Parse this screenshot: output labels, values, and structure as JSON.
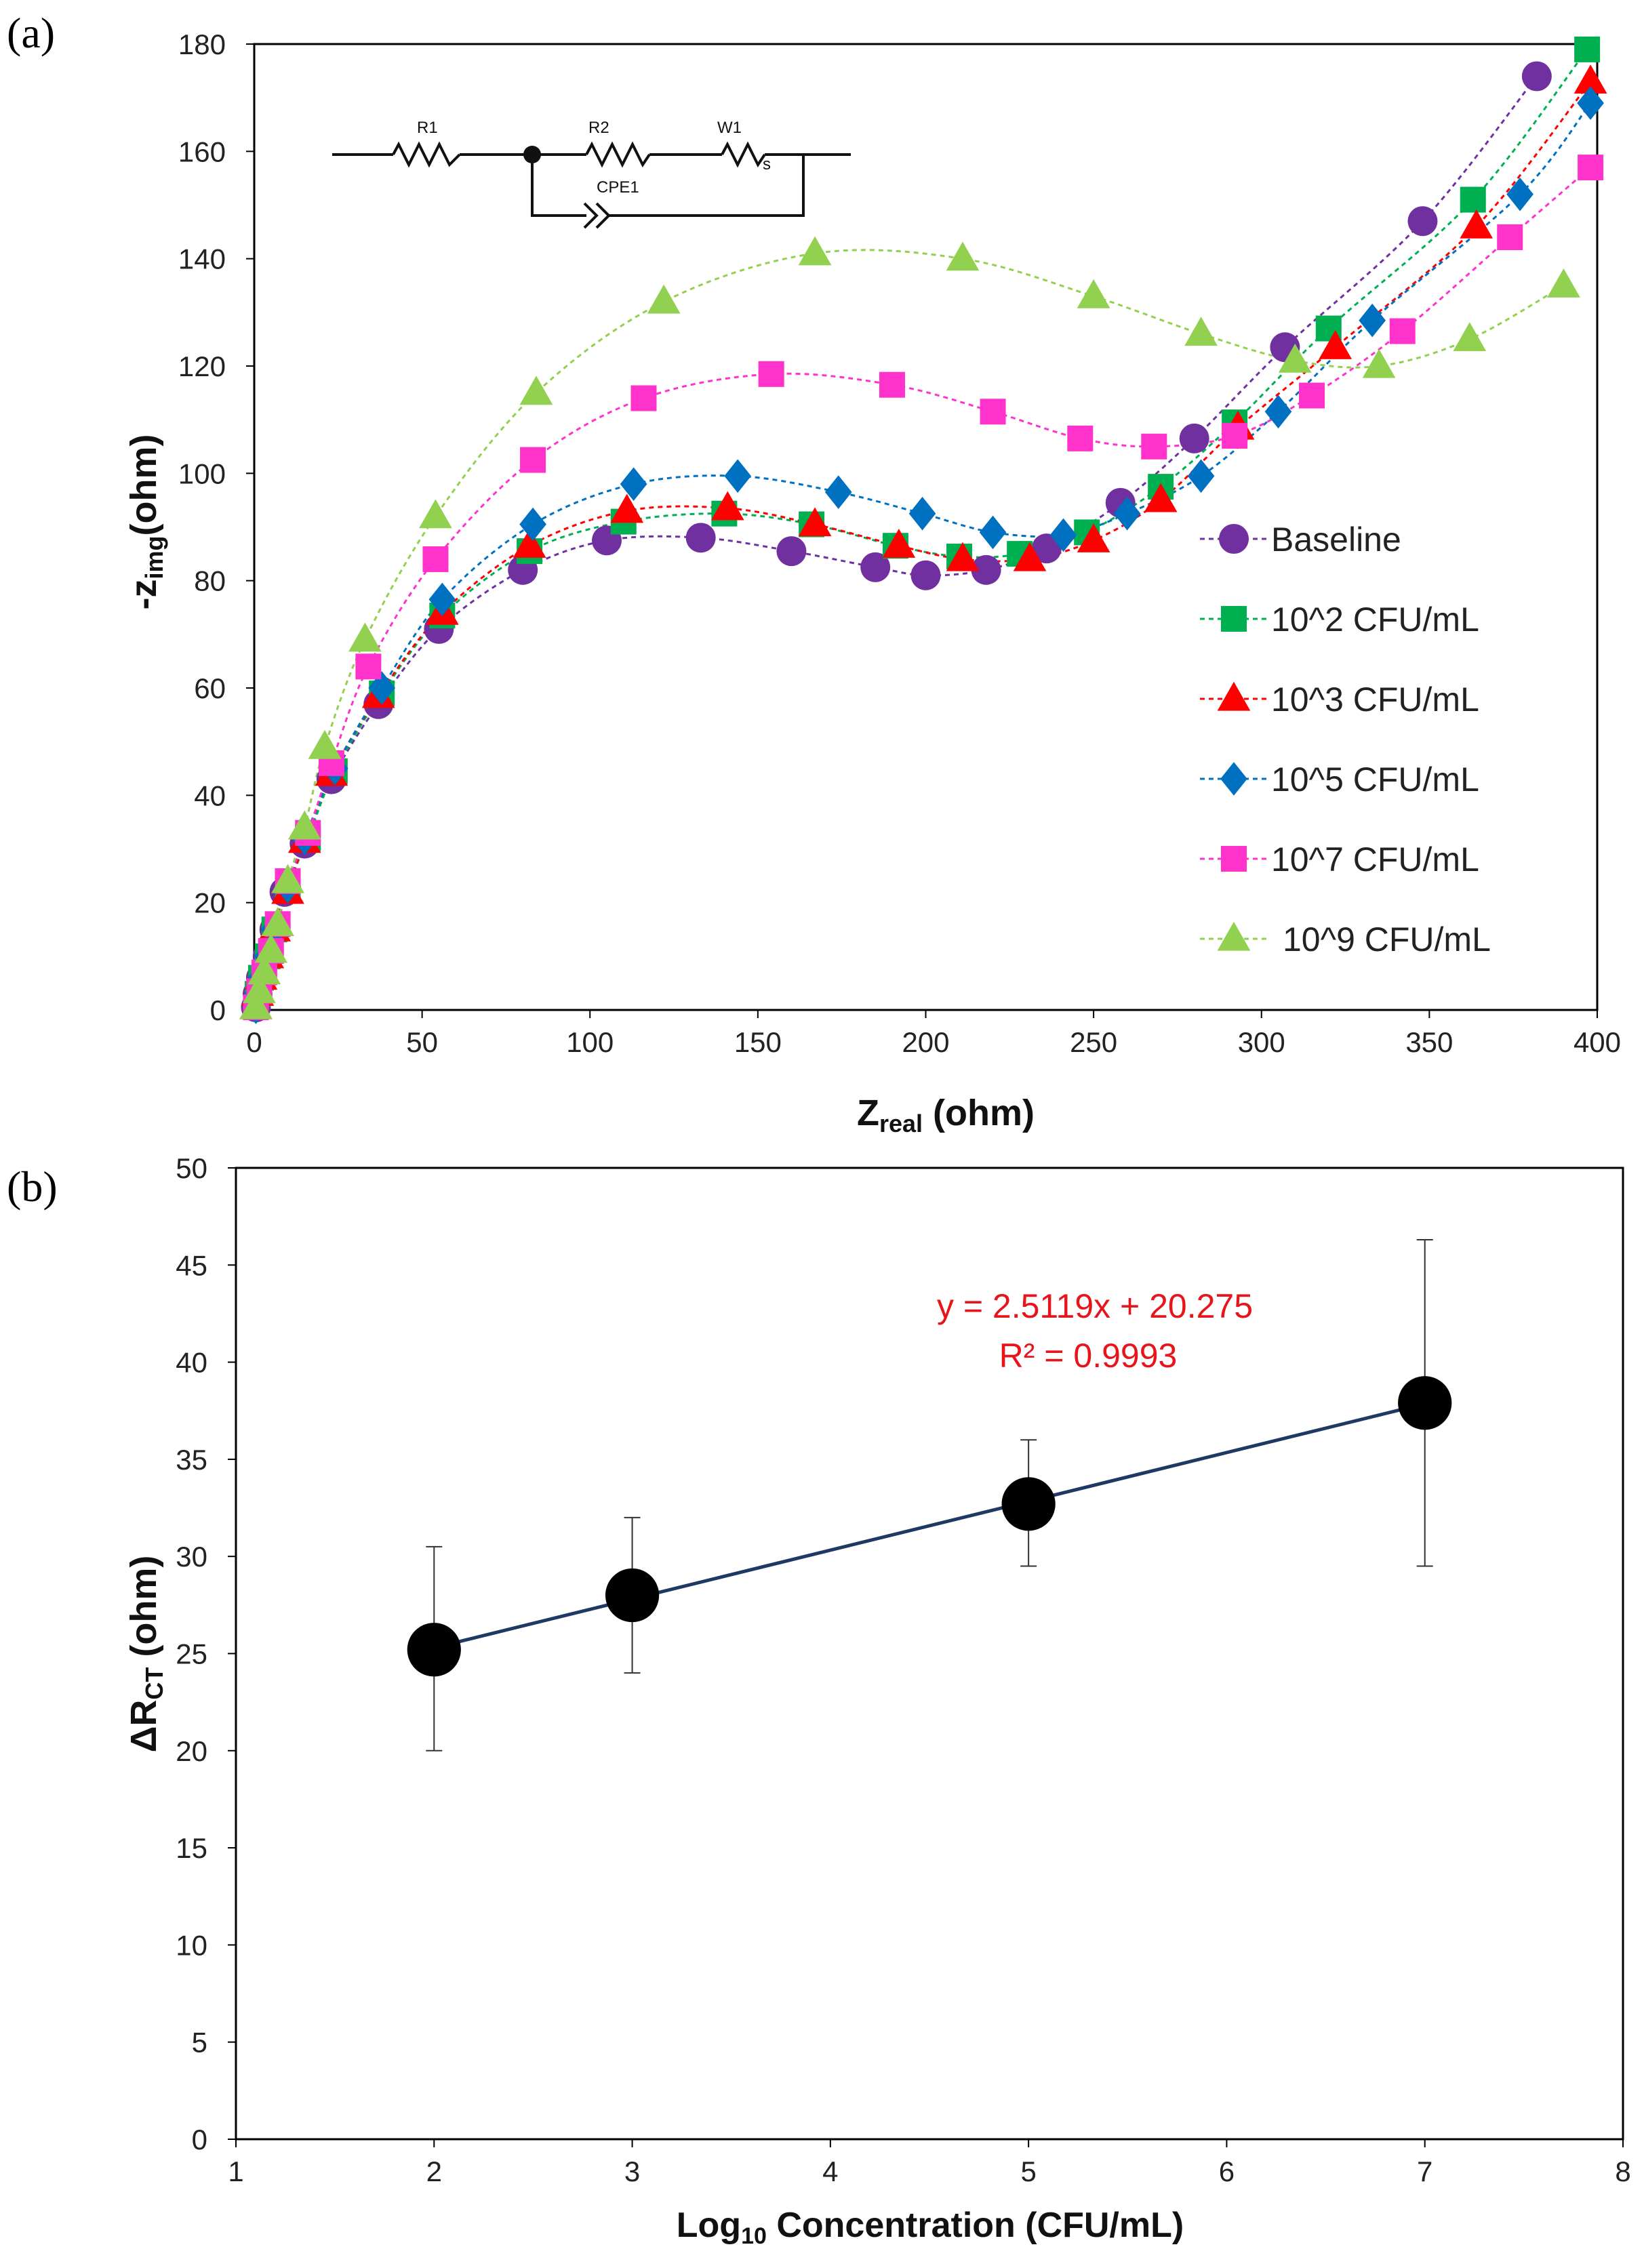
{
  "figure": {
    "panel_a_label": "(a)",
    "panel_b_label": "(b)"
  },
  "circuit": {
    "labels": [
      "R1",
      "R2",
      "W1",
      "s",
      "CPE1"
    ]
  },
  "chart_data": [
    {
      "type": "scatter",
      "panel": "a",
      "title": "",
      "xlabel": "Z",
      "xlabel_sub": "real",
      "xlabel_tail": " (ohm)",
      "ylabel": "-z",
      "ylabel_sub": "img",
      "ylabel_tail": "(ohm)",
      "xlim": [
        0,
        400
      ],
      "ylim": [
        0,
        180
      ],
      "xticks": [
        0,
        50,
        100,
        150,
        200,
        250,
        300,
        350,
        400
      ],
      "yticks": [
        0,
        20,
        40,
        60,
        80,
        100,
        120,
        140,
        160,
        180
      ],
      "xtick_labels": [
        "0",
        "50",
        "100",
        "150",
        "200",
        "250",
        "300",
        "350",
        "400"
      ],
      "ytick_labels": [
        "0",
        "20",
        "40",
        "60",
        "80",
        "100",
        "120",
        "140",
        "160",
        "180"
      ],
      "grid": false,
      "legend_position": "right",
      "series": [
        {
          "name": "Baseline",
          "marker": "circle",
          "color": "#7030a0",
          "x": [
            0.5,
            1,
            2,
            4,
            6,
            9,
            15,
            23,
            37,
            55,
            80,
            105,
            133,
            160,
            185,
            200,
            218,
            236,
            258,
            280,
            307,
            348,
            382
          ],
          "y": [
            0.5,
            3,
            6,
            10,
            15,
            22,
            31,
            43,
            57,
            71,
            82,
            87.5,
            88,
            85.5,
            82.5,
            81,
            82,
            86,
            94.5,
            106.5,
            123.5,
            147,
            174
          ]
        },
        {
          "name": "10^2 CFU/mL",
          "marker": "square",
          "color": "#00b050",
          "x": [
            0.5,
            1,
            2,
            4,
            6,
            10,
            16,
            24,
            38,
            56,
            82,
            110,
            140,
            166,
            191,
            210,
            228,
            248,
            270,
            292,
            320,
            363,
            397
          ],
          "y": [
            0.5,
            3,
            6,
            10,
            15,
            23,
            32,
            44.5,
            59,
            73.5,
            85.5,
            91,
            92.5,
            90.5,
            86.5,
            84.5,
            85,
            89,
            97.5,
            109.5,
            127,
            151,
            179
          ]
        },
        {
          "name": "10^3 CFU/mL",
          "marker": "triangle",
          "color": "#ff0000",
          "x": [
            0.5,
            1,
            2,
            4,
            6,
            10,
            15,
            23,
            37,
            56,
            82,
            111,
            141,
            167,
            192,
            211,
            231,
            250,
            270,
            293,
            322,
            364,
            398
          ],
          "y": [
            0.5,
            3,
            6,
            10,
            15,
            22,
            31.5,
            44,
            58.5,
            74,
            86.5,
            93,
            93.5,
            90.5,
            86.5,
            84,
            84,
            87.5,
            95,
            108.5,
            123.5,
            146,
            173
          ]
        },
        {
          "name": "10^5 CFU/mL",
          "marker": "diamond",
          "color": "#0070c0",
          "x": [
            0.5,
            1,
            2,
            4,
            6,
            10,
            15,
            24,
            38,
            56,
            83,
            113,
            144,
            174,
            199,
            220,
            241,
            260,
            282,
            305,
            333,
            377,
            398
          ],
          "y": [
            0.5,
            3,
            6,
            10,
            15,
            23,
            32,
            45,
            60,
            76.5,
            90.5,
            98,
            99.5,
            96.5,
            92.5,
            89,
            88.5,
            92.5,
            99.5,
            111.5,
            128.5,
            152,
            169
          ]
        },
        {
          "name": "10^7 CFU/mL",
          "marker": "square",
          "color": "#ff33cc",
          "x": [
            0.5,
            1.5,
            3,
            5,
            7,
            10,
            16,
            23,
            34,
            54,
            83,
            116,
            154,
            190,
            220,
            246,
            268,
            292,
            315,
            342,
            374,
            398
          ],
          "y": [
            0.5,
            3.5,
            7,
            11,
            16,
            24,
            33,
            46,
            64,
            84,
            102.5,
            114,
            118.5,
            116.5,
            111.5,
            106.5,
            105,
            107,
            114.5,
            126.5,
            144,
            157
          ]
        },
        {
          "name": "10^9 CFU/mL",
          "marker": "triangle",
          "color": "#92d050",
          "x": [
            0.5,
            1.5,
            3,
            5,
            7,
            10,
            15,
            21,
            33,
            54,
            84,
            122,
            167,
            211,
            250,
            282,
            310,
            335,
            362,
            390
          ],
          "y": [
            0.5,
            3.5,
            7,
            11,
            16,
            24,
            34,
            49,
            69,
            92,
            115,
            132,
            141,
            140,
            133,
            126,
            121,
            120,
            125,
            135
          ]
        }
      ]
    },
    {
      "type": "scatter",
      "panel": "b",
      "title": "",
      "xlabel": "Log",
      "xlabel_sub": "10",
      "xlabel_tail": " Concentration (CFU/mL)",
      "ylabel": "ΔR",
      "ylabel_sub": "CT",
      "ylabel_tail": " (ohm)",
      "xlim": [
        1,
        8
      ],
      "ylim": [
        0,
        50
      ],
      "xticks": [
        1,
        2,
        3,
        4,
        5,
        6,
        7,
        8
      ],
      "yticks": [
        0,
        5,
        10,
        15,
        20,
        25,
        30,
        35,
        40,
        45,
        50
      ],
      "xtick_labels": [
        "1",
        "2",
        "3",
        "4",
        "5",
        "6",
        "7",
        "8"
      ],
      "ytick_labels": [
        "0",
        "5",
        "10",
        "15",
        "20",
        "25",
        "30",
        "35",
        "40",
        "45",
        "50"
      ],
      "grid": false,
      "series": [
        {
          "name": "",
          "marker": "circle",
          "color": "#000000",
          "x": [
            2,
            3,
            5,
            7
          ],
          "y": [
            25.2,
            28.0,
            32.7,
            37.9
          ],
          "err_low": [
            20.0,
            24.0,
            29.5,
            29.5
          ],
          "err_high": [
            30.5,
            32.0,
            36.0,
            46.3
          ]
        }
      ],
      "trendline": {
        "slope": 2.5119,
        "intercept": 20.275,
        "x_from": 2,
        "x_to": 7,
        "color": "#1f3864"
      },
      "annotation": {
        "equation": "y = 2.5119x + 20.275",
        "r2": "R² = 0.9993",
        "color": "#e8141b"
      }
    }
  ]
}
